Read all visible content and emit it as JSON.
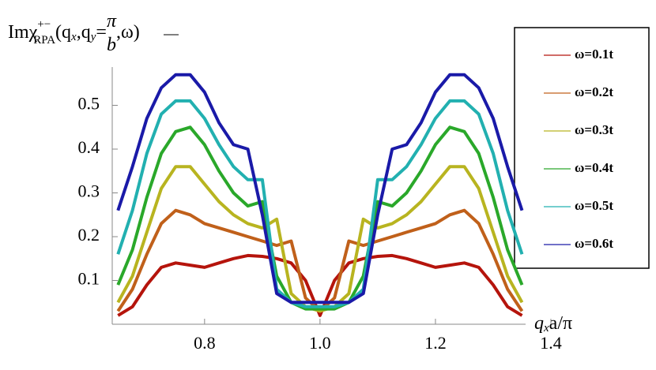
{
  "chart_data": {
    "type": "line",
    "title_parts": {
      "pre": "Imχ",
      "sup": "+−",
      "sub": "RPA",
      "args": "(q",
      "argsub1": "x",
      "mid": ",q",
      "argsub2": "y",
      "eq": "=",
      "num": "π",
      "den": "b",
      "post": ",ω)"
    },
    "xlabel_parts": {
      "q": "q",
      "sub": "x",
      "rest": "a/π"
    },
    "x": [
      0.65,
      0.675,
      0.7,
      0.725,
      0.75,
      0.775,
      0.8,
      0.825,
      0.85,
      0.875,
      0.9,
      0.925,
      0.95,
      0.975,
      1.0,
      1.025,
      1.05,
      1.075,
      1.1,
      1.125,
      1.15,
      1.175,
      1.2,
      1.225,
      1.25,
      1.275,
      1.3,
      1.325,
      1.35
    ],
    "series": [
      {
        "name": "ω=0.1t",
        "color": "#b5140c",
        "values": [
          0.02,
          0.04,
          0.09,
          0.13,
          0.14,
          0.135,
          0.13,
          0.14,
          0.15,
          0.157,
          0.155,
          0.15,
          0.14,
          0.1,
          0.02,
          0.1,
          0.14,
          0.15,
          0.155,
          0.157,
          0.15,
          0.14,
          0.13,
          0.135,
          0.14,
          0.13,
          0.09,
          0.04,
          0.02
        ]
      },
      {
        "name": "ω=0.2t",
        "color": "#c0601a",
        "values": [
          0.03,
          0.08,
          0.16,
          0.23,
          0.26,
          0.25,
          0.23,
          0.22,
          0.21,
          0.2,
          0.19,
          0.18,
          0.19,
          0.06,
          0.03,
          0.06,
          0.19,
          0.18,
          0.19,
          0.2,
          0.21,
          0.22,
          0.23,
          0.25,
          0.26,
          0.23,
          0.16,
          0.08,
          0.03
        ]
      },
      {
        "name": "ω=0.3t",
        "color": "#b8b420",
        "values": [
          0.05,
          0.11,
          0.21,
          0.31,
          0.36,
          0.36,
          0.32,
          0.28,
          0.25,
          0.23,
          0.22,
          0.24,
          0.07,
          0.04,
          0.03,
          0.04,
          0.07,
          0.24,
          0.22,
          0.23,
          0.25,
          0.28,
          0.32,
          0.36,
          0.36,
          0.31,
          0.21,
          0.11,
          0.05
        ]
      },
      {
        "name": "ω=0.4t",
        "color": "#2aa82a",
        "values": [
          0.09,
          0.17,
          0.29,
          0.39,
          0.44,
          0.45,
          0.41,
          0.35,
          0.3,
          0.27,
          0.28,
          0.11,
          0.05,
          0.035,
          0.035,
          0.035,
          0.05,
          0.11,
          0.28,
          0.27,
          0.3,
          0.35,
          0.41,
          0.45,
          0.44,
          0.39,
          0.29,
          0.17,
          0.09
        ]
      },
      {
        "name": "ω=0.5t",
        "color": "#22b0b0",
        "values": [
          0.16,
          0.26,
          0.39,
          0.48,
          0.51,
          0.51,
          0.47,
          0.41,
          0.36,
          0.33,
          0.33,
          0.08,
          0.05,
          0.04,
          0.04,
          0.04,
          0.05,
          0.08,
          0.33,
          0.33,
          0.36,
          0.41,
          0.47,
          0.51,
          0.51,
          0.48,
          0.39,
          0.26,
          0.16
        ]
      },
      {
        "name": "ω=0.6t",
        "color": "#1a1aa8",
        "values": [
          0.26,
          0.36,
          0.47,
          0.54,
          0.57,
          0.57,
          0.53,
          0.46,
          0.41,
          0.4,
          0.25,
          0.07,
          0.05,
          0.05,
          0.05,
          0.05,
          0.05,
          0.07,
          0.25,
          0.4,
          0.41,
          0.46,
          0.53,
          0.57,
          0.57,
          0.54,
          0.47,
          0.36,
          0.26
        ]
      }
    ],
    "xlim": [
      0.64,
      1.4
    ],
    "ylim": [
      0,
      0.6
    ],
    "xticks": [
      0.8,
      {
        "value": 1.0,
        "label": "1.0"
      },
      1.2,
      1.4
    ],
    "yticks": [
      0.1,
      0.2,
      0.3,
      0.4,
      0.5
    ],
    "legend": "right"
  }
}
